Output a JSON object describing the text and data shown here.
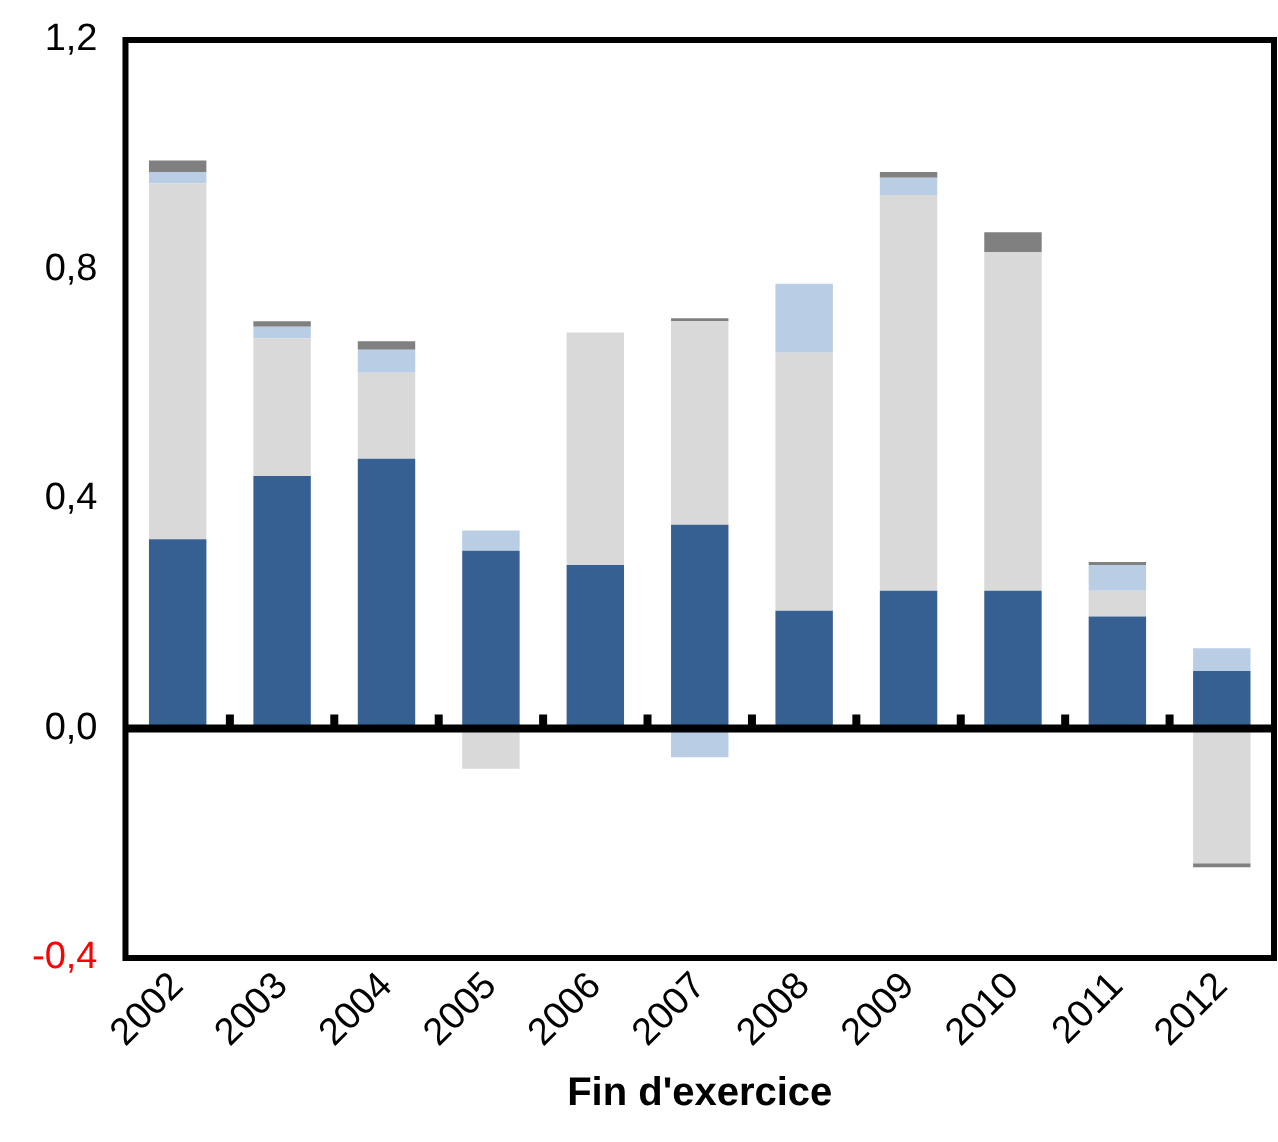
{
  "chart_data": {
    "type": "bar",
    "stacked": true,
    "xlabel": "Fin d'exercice",
    "categories": [
      "2002",
      "2003",
      "2004",
      "2005",
      "2006",
      "2007",
      "2008",
      "2009",
      "2010",
      "2011",
      "2012"
    ],
    "series": [
      {
        "color": "#376092",
        "values": [
          0.33,
          0.44,
          0.47,
          0.31,
          0.285,
          0.355,
          0.205,
          0.24,
          0.24,
          0.195,
          0.1
        ]
      },
      {
        "color": "#d9d9d9",
        "values": [
          0.62,
          0.24,
          0.15,
          -0.07,
          0.405,
          0.355,
          0.45,
          0.69,
          0.59,
          0.045,
          -0.235
        ]
      },
      {
        "color": "#b9cde5",
        "values": [
          0.02,
          0.02,
          0.04,
          0.035,
          null,
          -0.05,
          0.12,
          0.03,
          null,
          0.045,
          0.04
        ]
      },
      {
        "color": "#808080",
        "values": [
          0.02,
          0.01,
          0.015,
          null,
          -0.005,
          0.005,
          null,
          0.01,
          0.035,
          0.005,
          -0.007
        ]
      }
    ],
    "ylim": [
      -0.4,
      1.2
    ],
    "yticks": [
      {
        "value": -0.4,
        "label": "-0,4"
      },
      {
        "value": 0,
        "label": "0,0"
      },
      {
        "value": 0.4,
        "label": "0,4"
      },
      {
        "value": 0.8,
        "label": "0,8"
      },
      {
        "value": 1.2,
        "label": "1,2"
      }
    ],
    "ref_lines": [
      {
        "axis": "y",
        "value": 0,
        "color": "#000000"
      }
    ],
    "grid": false,
    "legend": false
  }
}
